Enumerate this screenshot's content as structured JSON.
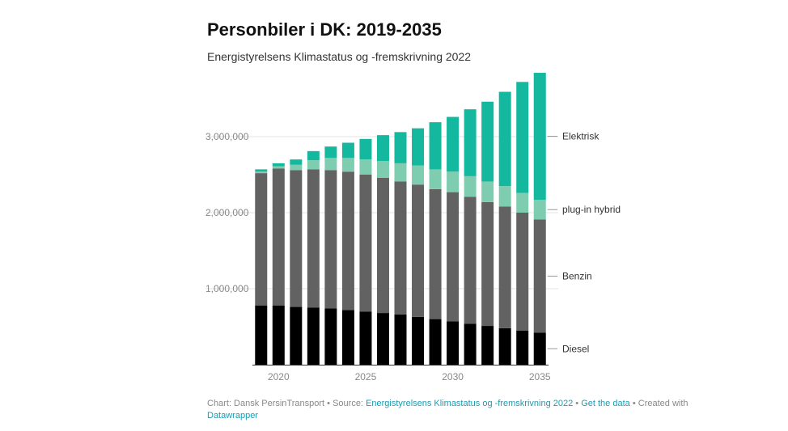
{
  "title": "Personbiler i DK: 2019-2035",
  "subtitle": "Energistyrelsens Klimastatus og -fremskrivning 2022",
  "footer": {
    "chart_label": "Chart: Dansk PersinTransport",
    "separator": "•",
    "source_label": "Source:",
    "source_link": "Energistyrelsens Klimastatus og -fremskrivning 2022",
    "get_data": "Get the data",
    "created_with": "Created with",
    "datawrapper": "Datawrapper"
  },
  "colors": {
    "diesel": "#000000",
    "benzin": "#626262",
    "plugin": "#7fcdb1",
    "elektrisk": "#14b89e",
    "grid": "#e3e3e3",
    "axis_text": "#888888",
    "legend_text": "#333333"
  },
  "chart_data": {
    "type": "bar",
    "stacked": true,
    "title": "Personbiler i DK: 2019-2035",
    "subtitle": "Energistyrelsens Klimastatus og -fremskrivning 2022",
    "categories": [
      "2019",
      "2020",
      "2021",
      "2022",
      "2023",
      "2024",
      "2025",
      "2026",
      "2027",
      "2028",
      "2029",
      "2030",
      "2031",
      "2032",
      "2033",
      "2034",
      "2035"
    ],
    "x_tick_labels": [
      "2020",
      "2025",
      "2030",
      "2035"
    ],
    "y_tick_values": [
      1000000,
      2000000,
      3000000
    ],
    "y_tick_labels": [
      "1,000,000",
      "2,000,000",
      "3,000,000"
    ],
    "ylim": [
      0,
      4000000
    ],
    "grid": true,
    "legend_placement": "right (direct labels)",
    "series": [
      {
        "name": "Diesel",
        "color_key": "diesel",
        "values": [
          780000,
          780000,
          760000,
          750000,
          740000,
          720000,
          700000,
          680000,
          660000,
          630000,
          600000,
          570000,
          540000,
          510000,
          480000,
          450000,
          420000
        ]
      },
      {
        "name": "Benzin",
        "color_key": "benzin",
        "values": [
          1740000,
          1800000,
          1800000,
          1820000,
          1820000,
          1820000,
          1800000,
          1780000,
          1750000,
          1740000,
          1710000,
          1700000,
          1670000,
          1630000,
          1600000,
          1550000,
          1490000
        ]
      },
      {
        "name": "plug-in hybrid",
        "color_key": "plugin",
        "values": [
          20000,
          30000,
          70000,
          120000,
          160000,
          180000,
          200000,
          220000,
          240000,
          250000,
          260000,
          270000,
          270000,
          270000,
          270000,
          260000,
          260000
        ]
      },
      {
        "name": "Elektrisk",
        "color_key": "elektrisk",
        "values": [
          30000,
          40000,
          70000,
          120000,
          150000,
          200000,
          270000,
          340000,
          410000,
          490000,
          620000,
          720000,
          880000,
          1050000,
          1240000,
          1460000,
          1670000
        ]
      }
    ]
  }
}
